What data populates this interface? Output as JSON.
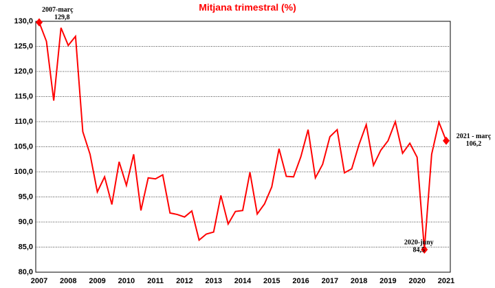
{
  "chart_data": {
    "type": "line",
    "title": "Mitjana trimestral (%)",
    "categories": [
      "2007",
      null,
      null,
      null,
      "2008",
      null,
      null,
      null,
      "2009",
      null,
      null,
      null,
      "2010",
      null,
      null,
      null,
      "2011",
      null,
      null,
      null,
      "2012",
      null,
      null,
      null,
      "2013",
      null,
      null,
      null,
      "2014",
      null,
      null,
      null,
      "2015",
      null,
      null,
      null,
      "2016",
      null,
      null,
      null,
      "2017",
      null,
      null,
      null,
      "2018",
      null,
      null,
      null,
      "2019",
      null,
      null,
      null,
      "2020",
      null,
      null,
      null,
      "2021"
    ],
    "series": [
      {
        "color": "#ff0000",
        "values": [
          129.8,
          126,
          114.2,
          128.7,
          125.2,
          127,
          108,
          103.5,
          96,
          99,
          93.5,
          102,
          97.3,
          103.5,
          92.3,
          98.8,
          98.6,
          99.4,
          91.8,
          91.5,
          91,
          92.2,
          86.4,
          87.6,
          88,
          95.3,
          89.6,
          92.1,
          92.3,
          99.9,
          91.6,
          93.6,
          97,
          104.6,
          99.1,
          99,
          103,
          108.4,
          98.8,
          101.5,
          107,
          108.4,
          99.8,
          100.6,
          105.4,
          109.4,
          101.3,
          104.3,
          106.2,
          110,
          103.7,
          105.7,
          102.9,
          84.5,
          103.5,
          109.9,
          106.2
        ],
        "value_labels": [
          "129,8",
          null,
          null,
          null,
          null,
          null,
          null,
          null,
          null,
          null,
          null,
          null,
          null,
          null,
          null,
          null,
          null,
          null,
          null,
          null,
          null,
          null,
          null,
          null,
          null,
          null,
          null,
          null,
          null,
          null,
          null,
          null,
          null,
          null,
          null,
          null,
          null,
          null,
          null,
          null,
          null,
          null,
          null,
          null,
          null,
          null,
          null,
          null,
          null,
          null,
          null,
          null,
          null,
          "84,5",
          null,
          null,
          "106,2"
        ],
        "point_labels": [
          "2007-març",
          null,
          null,
          null,
          null,
          null,
          null,
          null,
          null,
          null,
          null,
          null,
          null,
          null,
          null,
          null,
          null,
          null,
          null,
          null,
          null,
          null,
          null,
          null,
          null,
          null,
          null,
          null,
          null,
          null,
          null,
          null,
          null,
          null,
          null,
          null,
          null,
          null,
          null,
          null,
          null,
          null,
          null,
          null,
          null,
          null,
          null,
          null,
          null,
          null,
          null,
          null,
          null,
          "2020-juny",
          null,
          null,
          "2021 - març"
        ]
      }
    ],
    "ylim": [
      80,
      130
    ],
    "yticks": [
      {
        "value": 80,
        "label": "80,0"
      },
      {
        "value": 85,
        "label": "85,0"
      },
      {
        "value": 90,
        "label": "90,0"
      },
      {
        "value": 95,
        "label": "95,0"
      },
      {
        "value": 100,
        "label": "100,0"
      },
      {
        "value": 105,
        "label": "105,0"
      },
      {
        "value": 110,
        "label": "110,0"
      },
      {
        "value": 115,
        "label": "115,0"
      },
      {
        "value": 120,
        "label": "120,0"
      },
      {
        "value": 125,
        "label": "125,0"
      },
      {
        "value": 130,
        "label": "130,0"
      }
    ],
    "grid": true
  }
}
